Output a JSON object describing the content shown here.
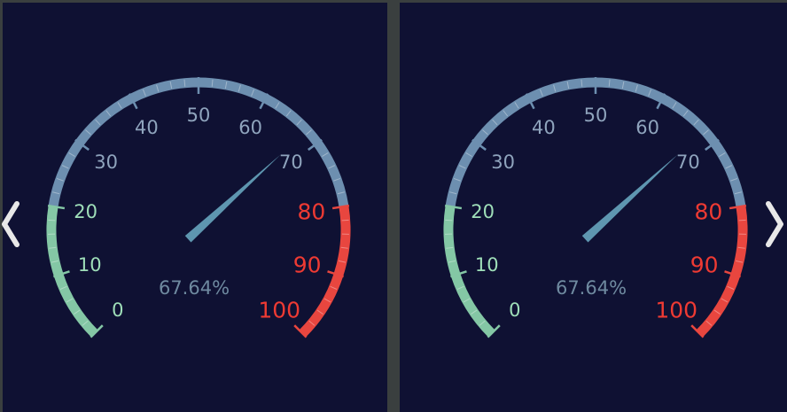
{
  "colors": {
    "background": "#0f1133",
    "separator": "#3a3f3f",
    "low_band": "#84c7a5",
    "mid_band": "#6d8fb0",
    "high_band": "#e8463f",
    "needle": "#5e96b0",
    "label_low": "#9fdfb9",
    "label_mid": "#8fa4bd",
    "label_high": "#ee3a33",
    "value_text": "#6f8aa0",
    "arrow": "#e8e8e8"
  },
  "gauge": {
    "min": 0,
    "max": 100,
    "low_band_max": 20,
    "high_band_min": 80,
    "tick_labels": [
      "0",
      "10",
      "20",
      "30",
      "40",
      "50",
      "60",
      "70",
      "80",
      "90",
      "100"
    ],
    "value": 67.64,
    "value_text": "67.64%"
  },
  "gauges": [
    {
      "id": "left",
      "value_text": "67.64%"
    },
    {
      "id": "right",
      "value_text": "67.64%"
    }
  ],
  "nav": {
    "prev_icon": "chevron-left-icon",
    "next_icon": "chevron-right-icon"
  }
}
